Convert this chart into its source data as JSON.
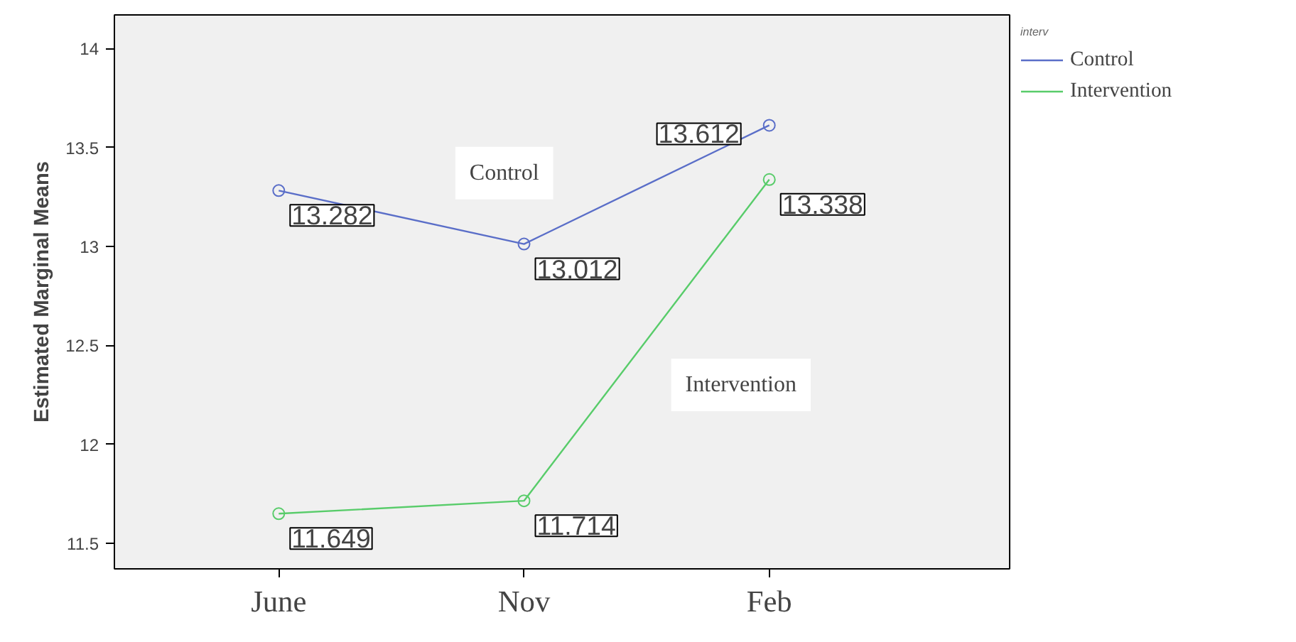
{
  "chart_data": {
    "type": "line",
    "ylabel": "Estimated Marginal Means",
    "categories": [
      "June",
      "Nov",
      "Feb"
    ],
    "series": [
      {
        "name": "Control",
        "color": "#5a6ec8",
        "values": [
          13.282,
          13.012,
          13.612
        ]
      },
      {
        "name": "Intervention",
        "color": "#58cc6a",
        "values": [
          11.649,
          11.714,
          13.338
        ]
      }
    ],
    "ylim": [
      11.37,
      14.17
    ],
    "yticks": [
      11.5,
      12,
      12.5,
      13,
      13.5,
      14
    ],
    "marker": "circle",
    "grid": false,
    "data_labels": true,
    "legend": "top right",
    "legend_title": "interv",
    "annotations": [
      "Control",
      "Intervention"
    ]
  }
}
